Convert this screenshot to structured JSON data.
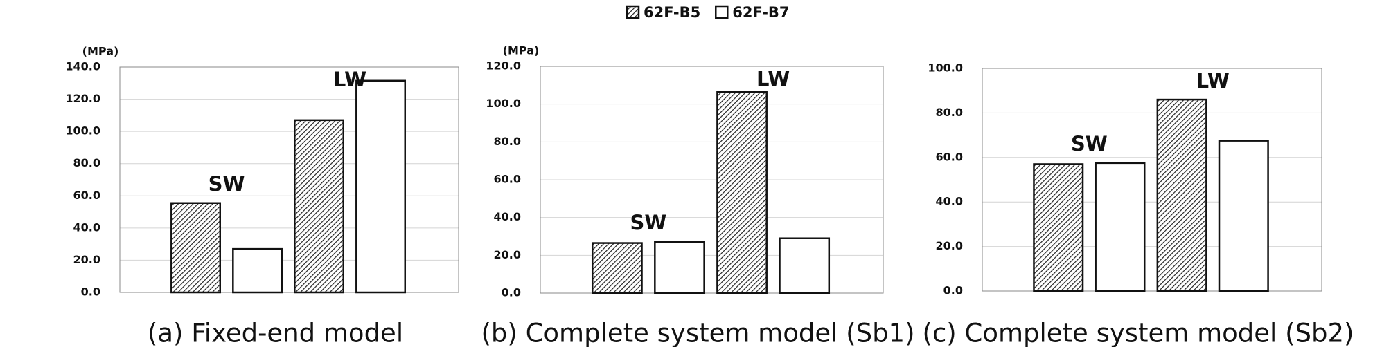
{
  "chart_data": [
    {
      "type": "bar",
      "title": "(a) Fixed-end model",
      "ylabel": "(MPa)",
      "categories": [
        "SW",
        "LW"
      ],
      "series": [
        {
          "name": "62F-B5",
          "color": "#222222",
          "hatch": true,
          "values": [
            55.5,
            107
          ]
        },
        {
          "name": "62F-B7",
          "color": "#ffffff",
          "hatch": false,
          "values": [
            27,
            131.5
          ]
        }
      ],
      "ylim": [
        0,
        140
      ],
      "yticks": [
        {
          "value": 0,
          "label": "0.0"
        },
        {
          "value": 20,
          "label": "20.0"
        },
        {
          "value": 40,
          "label": "40.0"
        },
        {
          "value": 60,
          "label": "60.0"
        },
        {
          "value": 80,
          "label": "80.0"
        },
        {
          "value": 100,
          "label": "100.0"
        },
        {
          "value": 120,
          "label": "120.0"
        },
        {
          "value": 140,
          "label": "140.0"
        }
      ],
      "grid": true
    },
    {
      "type": "bar",
      "title": "(b) Complete system model (Sb1)",
      "ylabel": "(MPa)",
      "categories": [
        "SW",
        "LW"
      ],
      "series": [
        {
          "color": "#222222",
          "hatch": true,
          "values": [
            26.5,
            106.5
          ]
        },
        {
          "color": "#ffffff",
          "hatch": false,
          "values": [
            27,
            29
          ]
        }
      ],
      "ylim": [
        0,
        120
      ],
      "yticks": [
        {
          "value": 0,
          "label": "0.0"
        },
        {
          "value": 20,
          "label": "20.0"
        },
        {
          "value": 40,
          "label": "40.0"
        },
        {
          "value": 60,
          "label": "60.0"
        },
        {
          "value": 80,
          "label": "80.0"
        },
        {
          "value": 100,
          "label": "100.0"
        },
        {
          "value": 120,
          "label": "120.0"
        }
      ],
      "grid": true
    },
    {
      "type": "bar",
      "title": "(c) Complete system model (Sb2)",
      "categories": [
        "SW",
        "LW"
      ],
      "series": [
        {
          "color": "#222222",
          "hatch": true,
          "values": [
            57,
            86
          ]
        },
        {
          "color": "#ffffff",
          "hatch": false,
          "values": [
            57.5,
            67.5
          ]
        }
      ],
      "ylim": [
        0,
        100
      ],
      "yticks": [
        {
          "value": 0,
          "label": "0.0"
        },
        {
          "value": 20,
          "label": "20.0"
        },
        {
          "value": 40,
          "label": "40.0"
        },
        {
          "value": 60,
          "label": "60.0"
        },
        {
          "value": 80,
          "label": "80.0"
        },
        {
          "value": 100,
          "label": "100.0"
        }
      ],
      "grid": true
    }
  ]
}
